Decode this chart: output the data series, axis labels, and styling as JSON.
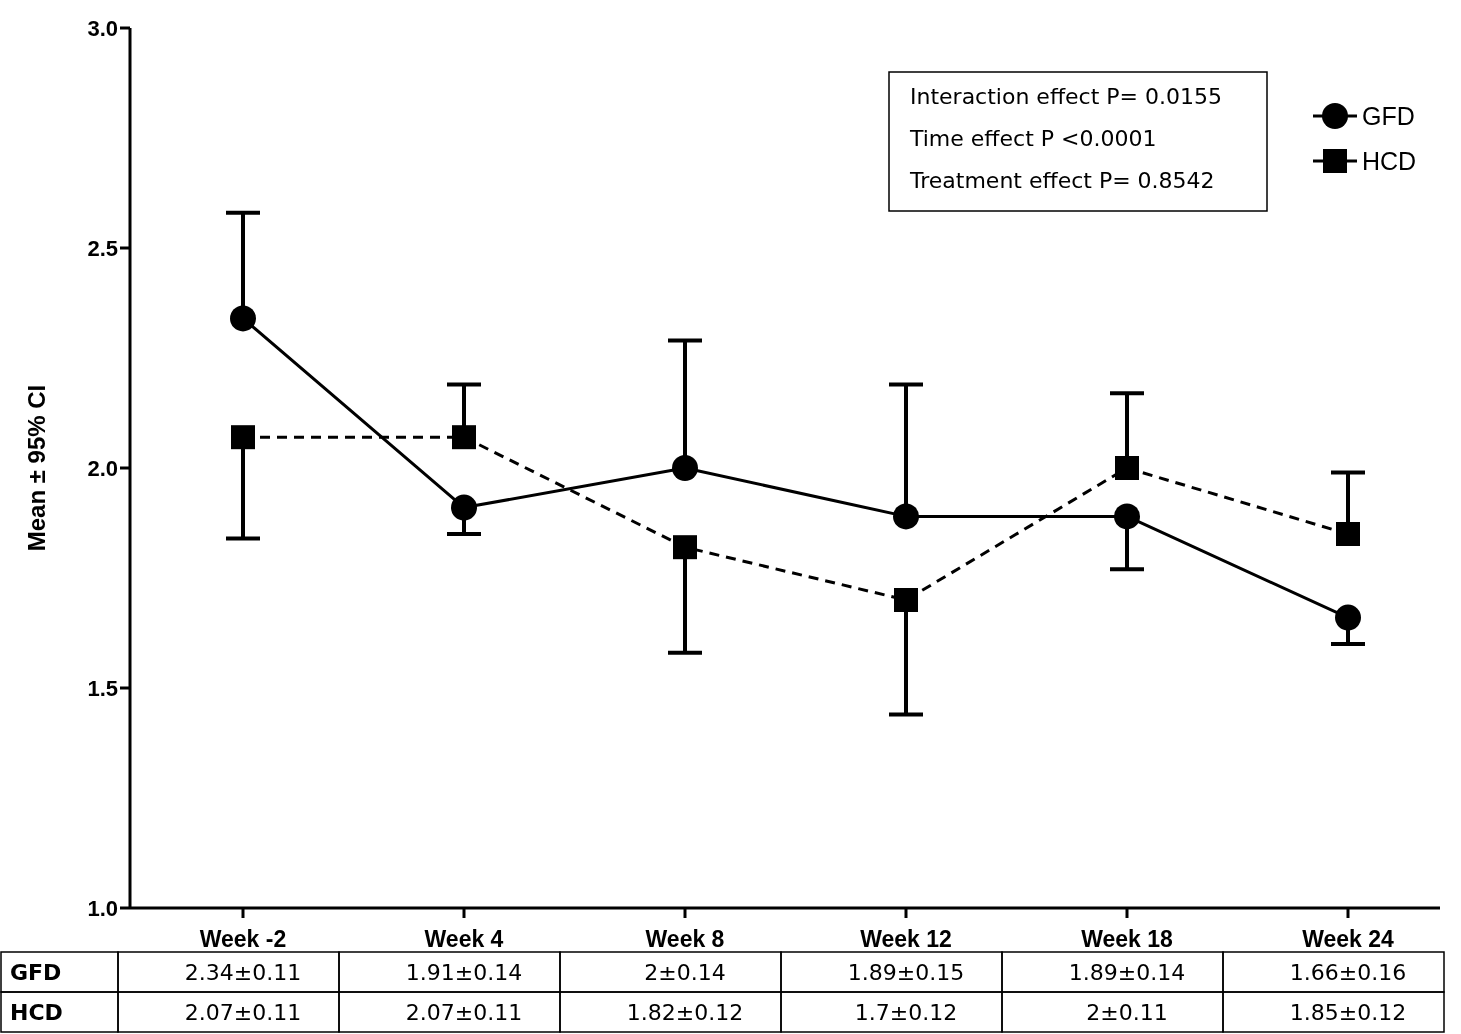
{
  "chart_data": {
    "type": "line",
    "ylabel": "Mean ± 95% CI",
    "categories": [
      "Week -2",
      "Week 4",
      "Week 8",
      "Week 12",
      "Week 18",
      "Week 24"
    ],
    "series": [
      {
        "name": "GFD",
        "color": "#000000",
        "marker": "circle",
        "line_style": "solid",
        "values": [
          2.34,
          1.91,
          2.0,
          1.89,
          1.89,
          1.66
        ],
        "errors": [
          [
            2.34,
            2.58
          ],
          [
            1.85,
            1.91
          ],
          [
            2.0,
            2.29
          ],
          [
            1.89,
            2.19
          ],
          [
            1.77,
            1.89
          ],
          [
            1.6,
            1.66
          ]
        ],
        "value_labels": [
          "2.34±0.11",
          "1.91±0.14",
          "2±0.14",
          "1.89±0.15",
          "1.89±0.14",
          "1.66±0.16"
        ]
      },
      {
        "name": "HCD",
        "color": "#000000",
        "marker": "square",
        "line_style": "dashed",
        "values": [
          2.07,
          2.07,
          1.82,
          1.7,
          2.0,
          1.85
        ],
        "errors": [
          [
            1.84,
            2.07
          ],
          [
            2.07,
            2.19
          ],
          [
            1.58,
            1.82
          ],
          [
            1.44,
            1.7
          ],
          [
            2.0,
            2.17
          ],
          [
            1.85,
            1.99
          ]
        ],
        "value_labels": [
          "2.07±0.11",
          "2.07±0.11",
          "1.82±0.12",
          "1.7±0.12",
          "2±0.11",
          "1.85±0.12"
        ]
      }
    ],
    "ylim": [
      1.0,
      3.0
    ],
    "yticks": [
      {
        "value": 1.0,
        "label": "1.0"
      },
      {
        "value": 1.5,
        "label": "1.5"
      },
      {
        "value": 2.0,
        "label": "2.0"
      },
      {
        "value": 2.5,
        "label": "2.5"
      },
      {
        "value": 3.0,
        "label": "3.0"
      }
    ],
    "grid": false,
    "legend": "top right",
    "annotations": [
      "Interaction effect P= 0.0155",
      "Time effect P <0.0001",
      "Treatment effect P= 0.8542"
    ]
  }
}
